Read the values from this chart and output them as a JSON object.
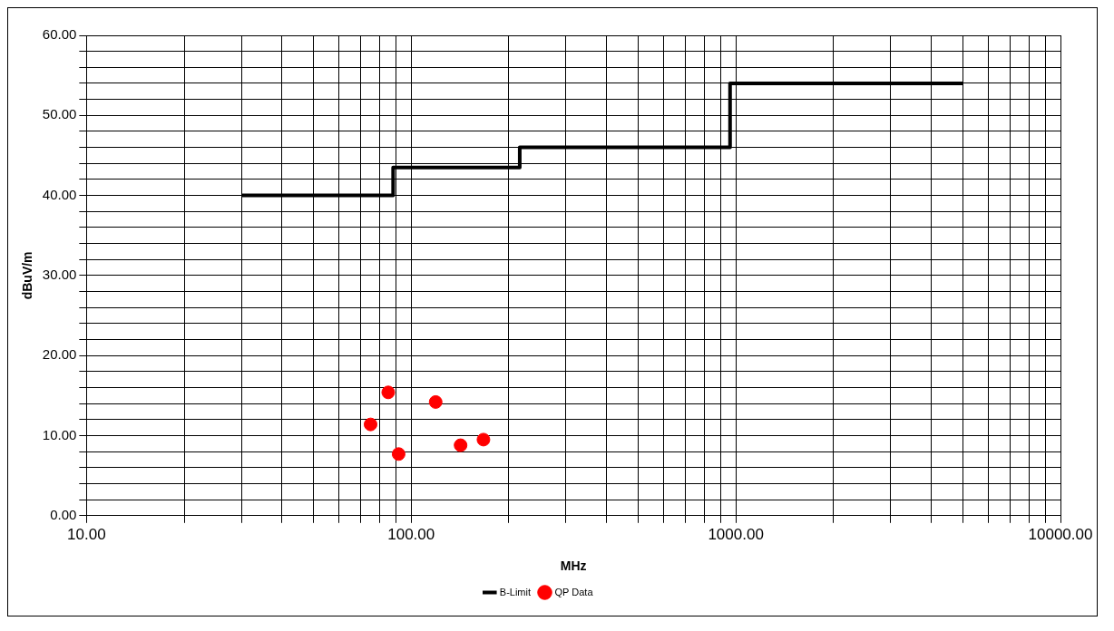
{
  "chart_data": {
    "type": "scatter",
    "xlabel": "MHz",
    "ylabel": "dBuV/m",
    "log": "x",
    "xlim": [
      10,
      10000
    ],
    "ylim": [
      0,
      60
    ],
    "xticks": [
      {
        "value": 10,
        "label": "10.00"
      },
      {
        "value": 20,
        "label": null
      },
      {
        "value": 30,
        "label": null
      },
      {
        "value": 40,
        "label": null
      },
      {
        "value": 50,
        "label": null
      },
      {
        "value": 60,
        "label": null
      },
      {
        "value": 70,
        "label": null
      },
      {
        "value": 80,
        "label": null
      },
      {
        "value": 90,
        "label": null
      },
      {
        "value": 100,
        "label": "100.00"
      },
      {
        "value": 200,
        "label": null
      },
      {
        "value": 300,
        "label": null
      },
      {
        "value": 400,
        "label": null
      },
      {
        "value": 500,
        "label": null
      },
      {
        "value": 600,
        "label": null
      },
      {
        "value": 700,
        "label": null
      },
      {
        "value": 800,
        "label": null
      },
      {
        "value": 900,
        "label": null
      },
      {
        "value": 1000,
        "label": "1000.00"
      },
      {
        "value": 2000,
        "label": null
      },
      {
        "value": 3000,
        "label": null
      },
      {
        "value": 4000,
        "label": null
      },
      {
        "value": 5000,
        "label": null
      },
      {
        "value": 6000,
        "label": null
      },
      {
        "value": 7000,
        "label": null
      },
      {
        "value": 8000,
        "label": null
      },
      {
        "value": 9000,
        "label": null
      },
      {
        "value": 10000,
        "label": "10000.00"
      }
    ],
    "yticks": [
      {
        "value": 0,
        "label": "0.00"
      },
      {
        "value": 2,
        "label": null
      },
      {
        "value": 4,
        "label": null
      },
      {
        "value": 6,
        "label": null
      },
      {
        "value": 8,
        "label": null
      },
      {
        "value": 10,
        "label": "10.00"
      },
      {
        "value": 12,
        "label": null
      },
      {
        "value": 14,
        "label": null
      },
      {
        "value": 16,
        "label": null
      },
      {
        "value": 18,
        "label": null
      },
      {
        "value": 20,
        "label": "20.00"
      },
      {
        "value": 22,
        "label": null
      },
      {
        "value": 24,
        "label": null
      },
      {
        "value": 26,
        "label": null
      },
      {
        "value": 28,
        "label": null
      },
      {
        "value": 30,
        "label": "30.00"
      },
      {
        "value": 32,
        "label": null
      },
      {
        "value": 34,
        "label": null
      },
      {
        "value": 36,
        "label": null
      },
      {
        "value": 38,
        "label": null
      },
      {
        "value": 40,
        "label": "40.00"
      },
      {
        "value": 42,
        "label": null
      },
      {
        "value": 44,
        "label": null
      },
      {
        "value": 46,
        "label": null
      },
      {
        "value": 48,
        "label": null
      },
      {
        "value": 50,
        "label": "50.00"
      },
      {
        "value": 52,
        "label": null
      },
      {
        "value": 54,
        "label": null
      },
      {
        "value": 56,
        "label": null
      },
      {
        "value": 58,
        "label": null
      },
      {
        "value": 60,
        "label": "60.00"
      }
    ],
    "grid": true,
    "legend": "bottom",
    "series": [
      {
        "name": "B-Limit",
        "type": "step",
        "color": "#000000",
        "marker": "none",
        "x": [
          30,
          88,
          216,
          960,
          5000
        ],
        "values": [
          40,
          43.5,
          46,
          54,
          54
        ]
      },
      {
        "name": "QP Data",
        "color": "#ff0000",
        "marker": "circle",
        "x": [
          75,
          85,
          91.5,
          119,
          142,
          167
        ],
        "values": [
          11.4,
          15.4,
          7.7,
          14.2,
          8.8,
          9.5
        ]
      }
    ]
  }
}
